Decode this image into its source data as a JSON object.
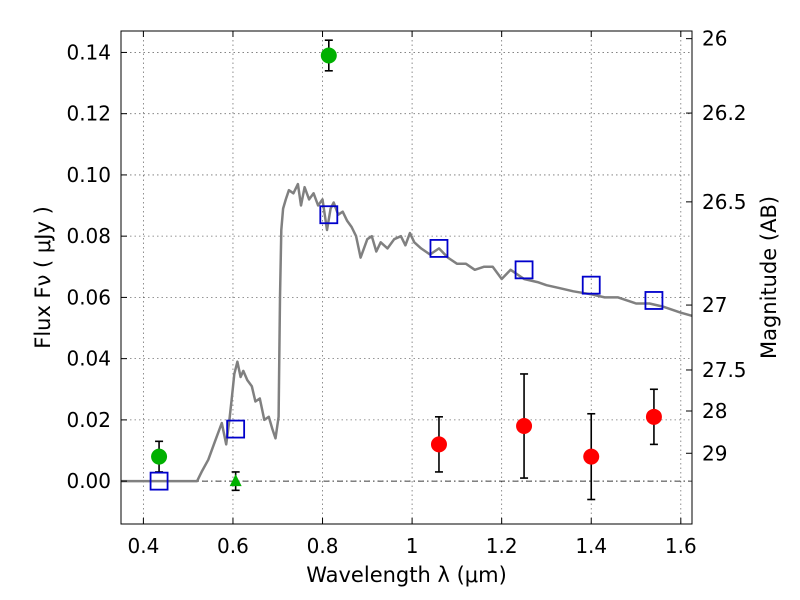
{
  "chart_data": {
    "type": "scatter",
    "title": "",
    "xlabel": "Wavelength  λ (μm)",
    "ylabel": "Flux  Fν  ( μJy )",
    "ylabel_right": "Magnitude (AB)",
    "xlim": [
      0.35,
      1.625
    ],
    "ylim": [
      -0.014,
      0.147
    ],
    "x_ticks": [
      0.4,
      0.6,
      0.8,
      1.0,
      1.2,
      1.4,
      1.6
    ],
    "x_tick_labels": [
      "0.4",
      "0.6",
      "0.8",
      "1",
      "1.2",
      "1.4",
      "1.6"
    ],
    "y_ticks": [
      0.0,
      0.02,
      0.04,
      0.06,
      0.08,
      0.1,
      0.12,
      0.14
    ],
    "y_tick_labels": [
      "0.00",
      "0.02",
      "0.04",
      "0.06",
      "0.08",
      "0.10",
      "0.12",
      "0.14"
    ],
    "mag_ticks": [
      {
        "label": "26",
        "flux": 0.1445
      },
      {
        "label": "26.2",
        "flux": 0.1202
      },
      {
        "label": "26.5",
        "flux": 0.0912
      },
      {
        "label": "27",
        "flux": 0.0575
      },
      {
        "label": "27.5",
        "flux": 0.0363
      },
      {
        "label": "28",
        "flux": 0.0229
      },
      {
        "label": "29",
        "flux": 0.0091
      }
    ],
    "grid": true,
    "colors": {
      "model": "#808080",
      "model_photometry": "#0000cc",
      "detections": "#00b000",
      "nondetections": "#ff0000",
      "errorbar": "#000000"
    },
    "series": [
      {
        "name": "model_sed",
        "kind": "line",
        "x": [
          0.35,
          0.52,
          0.53,
          0.545,
          0.56,
          0.575,
          0.585,
          0.592,
          0.598,
          0.603,
          0.61,
          0.617,
          0.623,
          0.632,
          0.642,
          0.65,
          0.66,
          0.67,
          0.68,
          0.688,
          0.695,
          0.702,
          0.705,
          0.708,
          0.712,
          0.718,
          0.725,
          0.735,
          0.745,
          0.752,
          0.76,
          0.77,
          0.78,
          0.79,
          0.8,
          0.81,
          0.818,
          0.825,
          0.835,
          0.845,
          0.855,
          0.865,
          0.875,
          0.885,
          0.9,
          0.91,
          0.92,
          0.93,
          0.945,
          0.96,
          0.975,
          0.985,
          0.995,
          1.005,
          1.02,
          1.04,
          1.06,
          1.08,
          1.1,
          1.12,
          1.14,
          1.16,
          1.18,
          1.2,
          1.22,
          1.25,
          1.28,
          1.3,
          1.33,
          1.36,
          1.4,
          1.43,
          1.46,
          1.5,
          1.53,
          1.56,
          1.6,
          1.625
        ],
        "y": [
          0.0,
          0.0,
          0.003,
          0.007,
          0.013,
          0.019,
          0.012,
          0.02,
          0.028,
          0.035,
          0.039,
          0.034,
          0.036,
          0.033,
          0.031,
          0.026,
          0.027,
          0.02,
          0.021,
          0.017,
          0.014,
          0.021,
          0.06,
          0.082,
          0.089,
          0.092,
          0.095,
          0.094,
          0.097,
          0.09,
          0.096,
          0.092,
          0.094,
          0.09,
          0.092,
          0.082,
          0.089,
          0.091,
          0.087,
          0.088,
          0.085,
          0.083,
          0.08,
          0.073,
          0.079,
          0.08,
          0.075,
          0.078,
          0.076,
          0.079,
          0.08,
          0.077,
          0.081,
          0.078,
          0.076,
          0.074,
          0.076,
          0.073,
          0.071,
          0.071,
          0.069,
          0.07,
          0.07,
          0.066,
          0.069,
          0.066,
          0.065,
          0.064,
          0.063,
          0.062,
          0.061,
          0.06,
          0.06,
          0.058,
          0.058,
          0.057,
          0.055,
          0.054
        ]
      },
      {
        "name": "model_photometry",
        "kind": "open_square",
        "x": [
          0.435,
          0.606,
          0.814,
          1.06,
          1.25,
          1.4,
          1.54
        ],
        "y": [
          0.0,
          0.017,
          0.087,
          0.076,
          0.069,
          0.064,
          0.059
        ]
      },
      {
        "name": "detections",
        "kind": "filled_circle",
        "x": [
          0.435,
          0.814
        ],
        "y": [
          0.008,
          0.139
        ],
        "yerr": [
          0.005,
          0.005
        ]
      },
      {
        "name": "upper_limit",
        "kind": "filled_triangle",
        "x": [
          0.606
        ],
        "y": [
          0.0
        ],
        "yerr": [
          0.003
        ]
      },
      {
        "name": "nondetections",
        "kind": "filled_circle",
        "x": [
          1.06,
          1.25,
          1.4,
          1.54
        ],
        "y": [
          0.012,
          0.018,
          0.008,
          0.021
        ],
        "yerr": [
          0.009,
          0.017,
          0.014,
          0.009
        ]
      }
    ]
  }
}
